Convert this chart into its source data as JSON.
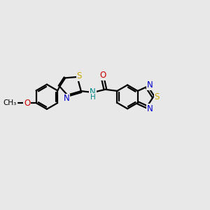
{
  "bg_color": "#e8e8e8",
  "bond_color": "#000000",
  "line_width": 1.6,
  "font_size": 8.5,
  "S_color": "#ccaa00",
  "N_color": "#0000cc",
  "O_color": "#cc0000",
  "NH_color": "#008888",
  "C_color": "#000000",
  "figsize": [
    3.0,
    3.0
  ],
  "dpi": 100,
  "xlim": [
    0,
    12
  ],
  "ylim": [
    0,
    10
  ]
}
